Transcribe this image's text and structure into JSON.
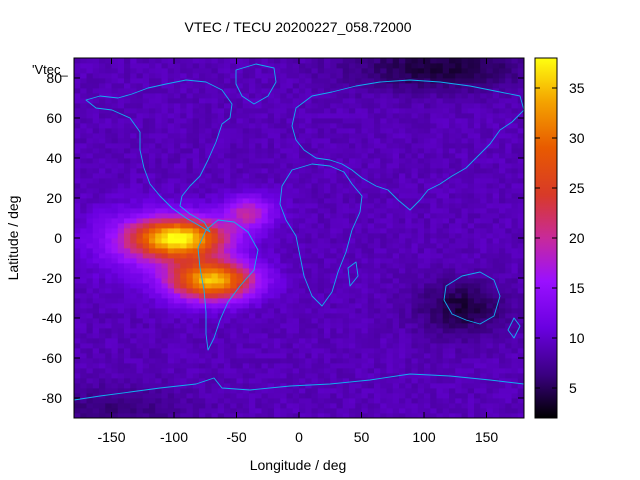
{
  "chart_data": {
    "type": "heatmap",
    "title": "VTEC / TECU 20200227_058.72000",
    "xlabel": "Longitude / deg",
    "ylabel": "Latitude / deg",
    "series_label": "'Vtec_",
    "xlim": [
      -180,
      180
    ],
    "ylim": [
      -90,
      90
    ],
    "xticks": [
      -150,
      -100,
      -50,
      0,
      50,
      100,
      150
    ],
    "yticks": [
      -80,
      -60,
      -40,
      -20,
      0,
      20,
      40,
      60,
      80
    ],
    "colorbar": {
      "range": [
        2,
        38
      ],
      "ticks": [
        5,
        10,
        15,
        20,
        25,
        30,
        35
      ]
    },
    "grid_resolution_deg": [
      5,
      2.5
    ],
    "background_vtec": 9,
    "features": [
      {
        "name": "south-american-crest-north",
        "lon": -95,
        "lat": 0,
        "peak": 27,
        "sigma_lon": 26,
        "sigma_lat": 7
      },
      {
        "name": "south-american-crest-south",
        "lon": -70,
        "lat": -21,
        "peak": 26,
        "sigma_lon": 24,
        "sigma_lat": 7
      },
      {
        "name": "atlantic-extension",
        "lon": -40,
        "lat": 13,
        "peak": 10,
        "sigma_lon": 14,
        "sigma_lat": 6
      },
      {
        "name": "pacific-equatorial-tongue",
        "lon": -130,
        "lat": -2,
        "peak": 5,
        "sigma_lon": 30,
        "sigma_lat": 12
      },
      {
        "name": "australian-low",
        "lon": 130,
        "lat": -35,
        "peak": -5,
        "sigma_lon": 25,
        "sigma_lat": 10
      },
      {
        "name": "arctic-low",
        "lon": 110,
        "lat": 85,
        "peak": -5,
        "sigma_lon": 50,
        "sigma_lat": 8
      },
      {
        "name": "antarctic-low",
        "lon": -150,
        "lat": -85,
        "peak": -3,
        "sigma_lon": 40,
        "sigma_lat": 8
      }
    ],
    "legend": "colorbar-right",
    "grid": false
  }
}
